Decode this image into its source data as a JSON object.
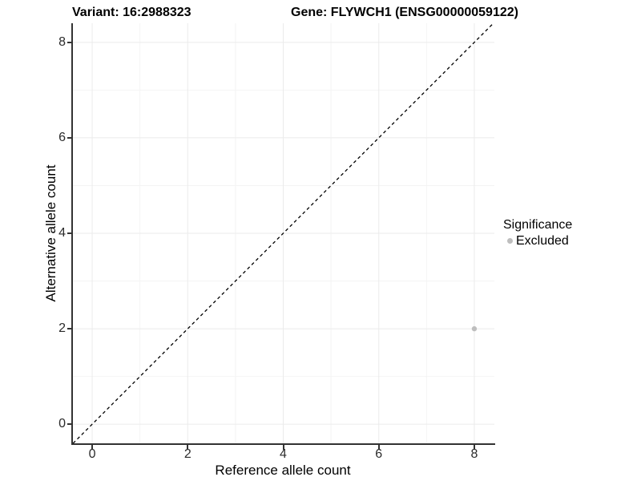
{
  "titles": {
    "variant": "Variant: 16:2988323",
    "gene": "Gene: FLYWCH1 (ENSG00000059122)"
  },
  "chart_data": {
    "type": "scatter",
    "xlabel": "Reference allele count",
    "ylabel": "Alternative allele count",
    "xlim": [
      -0.42,
      8.42
    ],
    "ylim": [
      -0.4,
      8.4
    ],
    "xticks": [
      0,
      2,
      4,
      6,
      8
    ],
    "yticks": [
      0,
      2,
      4,
      6,
      8
    ],
    "minor_xticks": [
      1,
      3,
      5,
      7
    ],
    "minor_yticks": [
      1,
      3,
      5,
      7
    ],
    "grid": true,
    "points": [
      {
        "x": 8,
        "y": 2,
        "series": "Excluded",
        "color": "#bebebe",
        "radius": 3.2
      }
    ],
    "reference_line": {
      "type": "identity",
      "slope": 1,
      "intercept": 0,
      "style": "dashed",
      "color": "#000000"
    },
    "legend": {
      "title": "Significance",
      "position": "right",
      "items": [
        {
          "label": "Excluded",
          "color": "#bebebe"
        }
      ]
    }
  },
  "theme": {
    "background": "#ffffff",
    "grid_major_color": "#ebebeb",
    "grid_minor_color": "#f4f4f4",
    "axis_line_color": "#333333",
    "tick_label_color": "#2b2b2b"
  }
}
